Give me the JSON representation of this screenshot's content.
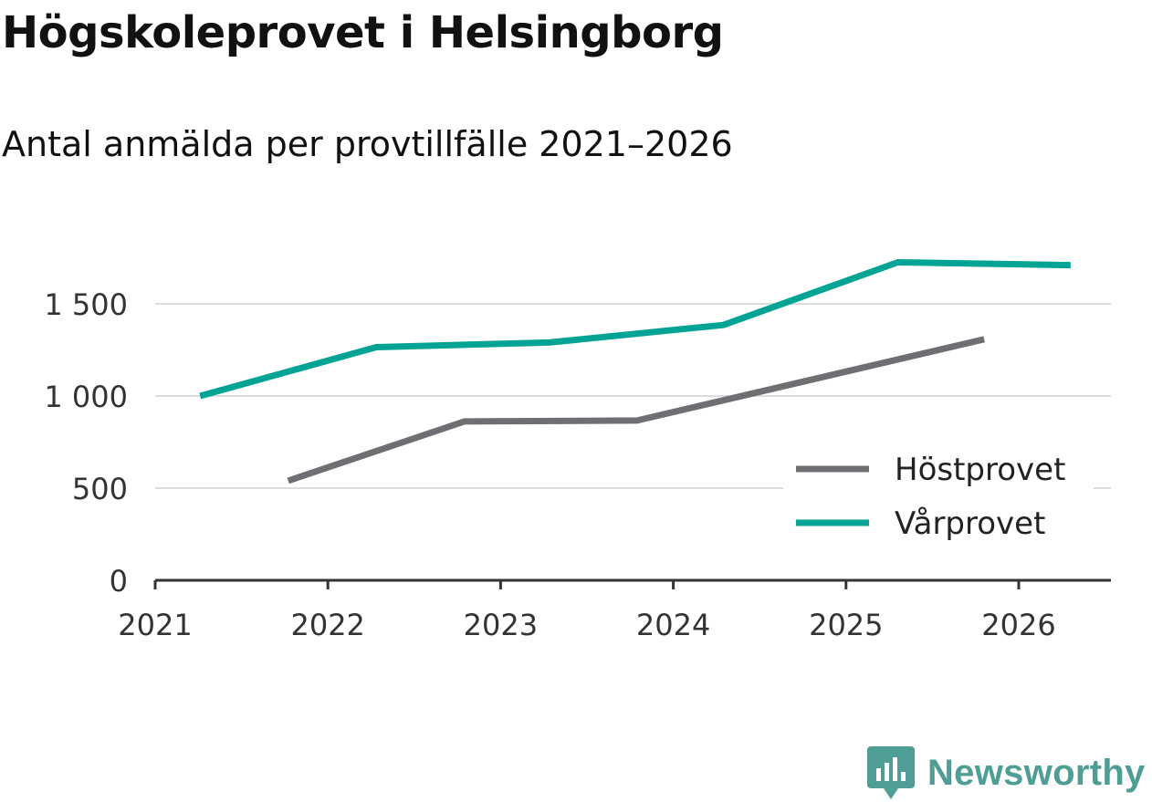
{
  "chart_data": {
    "type": "line",
    "title": "Högskoleprovet i Helsingborg",
    "subtitle": "Antal anmälda per provtillfälle 2021–2026",
    "xlabel": "",
    "ylabel": "",
    "x_ticks": [
      "2021",
      "2022",
      "2023",
      "2024",
      "2025",
      "2026"
    ],
    "y_ticks": [
      "0",
      "500",
      "1 000",
      "1 500"
    ],
    "ylim": [
      0,
      1800
    ],
    "xlim": [
      2021,
      2026.55
    ],
    "grid": true,
    "legend_position": "bottom-right",
    "series": [
      {
        "name": "Höstprovet",
        "color": "#6f6f73",
        "x": [
          2021.77,
          2022.79,
          2023.79,
          2025.8
        ],
        "values": [
          540,
          862,
          867,
          1308
        ]
      },
      {
        "name": "Vårprovet",
        "color": "#00a394",
        "x": [
          2021.26,
          2022.28,
          2023.28,
          2024.29,
          2025.3,
          2026.3
        ],
        "values": [
          1000,
          1265,
          1290,
          1385,
          1725,
          1710
        ]
      }
    ]
  },
  "branding": {
    "name": "Newsworthy",
    "logo_icon": "newsworthy-logo-icon",
    "color": "#4f9e95"
  }
}
